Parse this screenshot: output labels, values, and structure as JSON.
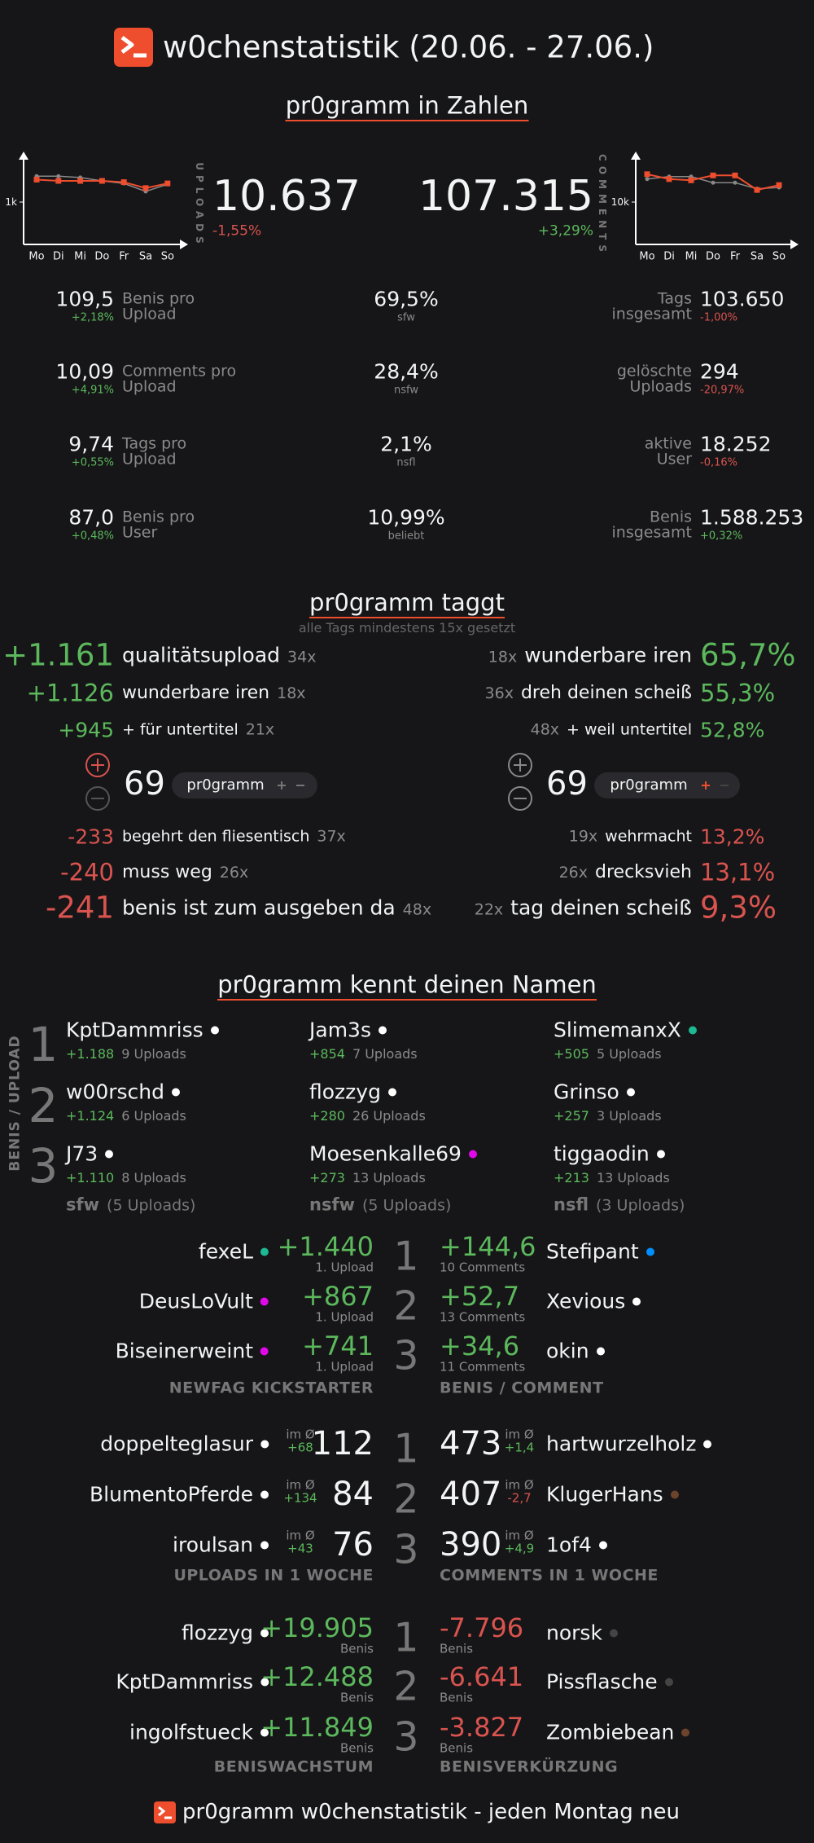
{
  "header": {
    "title": "w0chenstatistik (20.06. - 27.06.)"
  },
  "numbers": {
    "title": "pr0gramm in Zahlen",
    "uploads": {
      "label": "UPLOADS",
      "value": "10.637",
      "change": "-1,55%"
    },
    "comments": {
      "label": "COMMENTS",
      "value": "107.315",
      "change": "+3,29%"
    },
    "upload_chart": {
      "type": "line",
      "categories": [
        "Mo",
        "Di",
        "Mi",
        "Do",
        "Fr",
        "Sa",
        "So"
      ],
      "ylim": [
        0,
        2000
      ],
      "yticks": [
        {
          "value": 1000,
          "label": "1k"
        }
      ],
      "series": [
        {
          "color": "#888888",
          "values": [
            1610,
            1610,
            1580,
            1500,
            1440,
            1250,
            1420
          ]
        },
        {
          "color": "#ee4d2e",
          "values": [
            1530,
            1500,
            1500,
            1500,
            1470,
            1330,
            1440
          ]
        }
      ]
    },
    "comment_chart": {
      "type": "line",
      "categories": [
        "Mo",
        "Di",
        "Mi",
        "Do",
        "Fr",
        "Sa",
        "So"
      ],
      "ylim": [
        0,
        20000
      ],
      "yticks": [
        {
          "value": 10000,
          "label": "10k"
        }
      ],
      "series": [
        {
          "color": "#888888",
          "values": [
            15430,
            16000,
            16000,
            14570,
            14570,
            13140,
            13430
          ]
        },
        {
          "color": "#ee4d2e",
          "values": [
            16570,
            15430,
            15140,
            16290,
            16290,
            12860,
            14000
          ]
        }
      ]
    },
    "left": [
      {
        "value": "109,5",
        "change": "+2,18%",
        "label": [
          "Benis pro",
          "Upload"
        ]
      },
      {
        "value": "10,09",
        "change": "+4,91%",
        "label": [
          "Comments pro",
          "Upload"
        ]
      },
      {
        "value": "9,74",
        "change": "+0,55%",
        "label": [
          "Tags pro",
          "Upload"
        ]
      },
      {
        "value": "87,0",
        "change": "+0,48%",
        "label": [
          "Benis pro",
          "User"
        ]
      }
    ],
    "center": [
      {
        "value": "69,5%",
        "label": "sfw"
      },
      {
        "value": "28,4%",
        "label": "nsfw"
      },
      {
        "value": "2,1%",
        "label": "nsfl"
      },
      {
        "value": "10,99%",
        "label": "beliebt"
      }
    ],
    "right": [
      {
        "label": [
          "Tags",
          "insgesamt"
        ],
        "value": "103.650",
        "change": "-1,00%"
      },
      {
        "label": [
          "gelöschte",
          "Uploads"
        ],
        "value": "294",
        "change": "-20,97%"
      },
      {
        "label": [
          "aktive",
          "User"
        ],
        "value": "18.252",
        "change": "-0,16%"
      },
      {
        "label": [
          "Benis",
          "insgesamt"
        ],
        "value": "1.588.253",
        "change": "+0,32%"
      }
    ]
  },
  "tags": {
    "title": "pr0gramm taggt",
    "subtitle": "alle Tags mindestens 15x gesetzt",
    "top_left": [
      {
        "score": "+1.161",
        "tag": "qualitätsupload",
        "count": "34x"
      },
      {
        "score": "+1.126",
        "tag": "wunderbare iren",
        "count": "18x"
      },
      {
        "score": "+945",
        "tag": "+ für untertitel",
        "count": "21x"
      }
    ],
    "top_right": [
      {
        "count": "18x",
        "tag": "wunderbare iren",
        "share": "65,7%"
      },
      {
        "count": "36x",
        "tag": "dreh deinen scheiß",
        "share": "55,3%"
      },
      {
        "count": "48x",
        "tag": "+ weil untertitel",
        "share": "52,8%"
      }
    ],
    "vote_left": {
      "score": "69",
      "tag": "pr0gramm"
    },
    "vote_right": {
      "score": "69",
      "tag": "pr0gramm"
    },
    "bottom_left": [
      {
        "score": "-233",
        "tag": "begehrt den fliesentisch",
        "count": "37x"
      },
      {
        "score": "-240",
        "tag": "muss weg",
        "count": "26x"
      },
      {
        "score": "-241",
        "tag": "benis ist zum ausgeben da",
        "count": "48x"
      }
    ],
    "bottom_right": [
      {
        "count": "19x",
        "tag": "wehrmacht",
        "share": "13,2%"
      },
      {
        "count": "26x",
        "tag": "drecksvieh",
        "share": "13,1%"
      },
      {
        "count": "22x",
        "tag": "tag deinen scheiß",
        "share": "9,3%"
      }
    ]
  },
  "names": {
    "title": "pr0gramm kennt deinen Namen",
    "side_label": "BENIS / UPLOAD",
    "ranks": [
      "1",
      "2",
      "3"
    ],
    "columns": [
      {
        "users": [
          {
            "name": "KptDammriss",
            "color": "#ffffff",
            "benis": "+1.188",
            "uploads": "9 Uploads"
          },
          {
            "name": "w00rschd",
            "color": "#ffffff",
            "benis": "+1.124",
            "uploads": "6 Uploads"
          },
          {
            "name": "J73",
            "color": "#ffffff",
            "benis": "+1.110",
            "uploads": "8 Uploads"
          }
        ],
        "category": "sfw",
        "uploads": "(5 Uploads)"
      },
      {
        "users": [
          {
            "name": "Jam3s",
            "color": "#ffffff",
            "benis": "+854",
            "uploads": "7 Uploads"
          },
          {
            "name": "flozzyg",
            "color": "#ffffff",
            "benis": "+280",
            "uploads": "26 Uploads"
          },
          {
            "name": "Moesenkalle69",
            "color": "#e108e9",
            "benis": "+273",
            "uploads": "13 Uploads"
          }
        ],
        "category": "nsfw",
        "uploads": "(5 Uploads)"
      },
      {
        "users": [
          {
            "name": "SlimemanxX",
            "color": "#1db992",
            "benis": "+505",
            "uploads": "5 Uploads"
          },
          {
            "name": "Grinso",
            "color": "#ffffff",
            "benis": "+257",
            "uploads": "3 Uploads"
          },
          {
            "name": "tiggaodin",
            "color": "#ffffff",
            "benis": "+213",
            "uploads": "13 Uploads"
          }
        ],
        "category": "nsfl",
        "uploads": "(3 Uploads)"
      }
    ]
  },
  "rankings": [
    {
      "ranks": [
        "1",
        "2",
        "3"
      ],
      "left": {
        "title": "NEWFAG KICKSTARTER",
        "value_color": "#5cb85c",
        "rows": [
          {
            "name": "fexeL",
            "color": "#1db992",
            "value": "+1.440",
            "note": "1. Upload"
          },
          {
            "name": "DeusLoVult",
            "color": "#e108e9",
            "value": "+867",
            "note": "1. Upload"
          },
          {
            "name": "Biseinerweint",
            "color": "#e108e9",
            "value": "+741",
            "note": "1. Upload"
          }
        ]
      },
      "right": {
        "title": "BENIS / COMMENT",
        "value_color": "#5cb85c",
        "rows": [
          {
            "name": "Stefipant",
            "color": "#008fff",
            "value": "+144,6",
            "note": "10 Comments"
          },
          {
            "name": "Xevious",
            "color": "#ffffff",
            "value": "+52,7",
            "note": "13 Comments"
          },
          {
            "name": "okin",
            "color": "#ffffff",
            "value": "+34,6",
            "note": "11 Comments"
          }
        ]
      }
    },
    {
      "ranks": [
        "1",
        "2",
        "3"
      ],
      "left": {
        "title": "UPLOADS IN 1 WOCHE",
        "value_color": "#f2f5f4",
        "rows": [
          {
            "name": "doppelteglasur",
            "color": "#ffffff",
            "value": "112",
            "avg_label": "im Ø",
            "avg": "+68"
          },
          {
            "name": "BlumentoPferde",
            "color": "#ffffff",
            "value": "84",
            "avg_label": "im Ø",
            "avg": "+134"
          },
          {
            "name": "iroulsan",
            "color": "#ffffff",
            "value": "76",
            "avg_label": "im Ø",
            "avg": "+43"
          }
        ]
      },
      "right": {
        "title": "COMMENTS IN 1 WOCHE",
        "value_color": "#f2f5f4",
        "rows": [
          {
            "name": "hartwurzelholz",
            "color": "#ffffff",
            "value": "473",
            "avg_label": "im Ø",
            "avg": "+1,4"
          },
          {
            "name": "KlugerHans",
            "color": "#6c432b",
            "value": "407",
            "avg_label": "im Ø",
            "avg": "-2,7"
          },
          {
            "name": "1of4",
            "color": "#ffffff",
            "value": "390",
            "avg_label": "im Ø",
            "avg": "+4,9"
          }
        ]
      }
    },
    {
      "ranks": [
        "1",
        "2",
        "3"
      ],
      "left": {
        "title": "BENISWACHSTUM",
        "value_color": "#5cb85c",
        "rows": [
          {
            "name": "flozzyg",
            "color": "#ffffff",
            "value": "+19.905",
            "note": "Benis"
          },
          {
            "name": "KptDammriss",
            "color": "#ffffff",
            "value": "+12.488",
            "note": "Benis"
          },
          {
            "name": "ingolfstueck",
            "color": "#ffffff",
            "value": "+11.849",
            "note": "Benis"
          }
        ]
      },
      "right": {
        "title": "BENISVERKÜRZUNG",
        "value_color": "#d9534f",
        "rows": [
          {
            "name": "norsk",
            "color": "#444444",
            "value": "-7.796",
            "note": "Benis"
          },
          {
            "name": "Pissflasche",
            "color": "#444444",
            "value": "-6.641",
            "note": "Benis"
          },
          {
            "name": "Zombiebean",
            "color": "#6c432b",
            "value": "-3.827",
            "note": "Benis"
          }
        ]
      }
    }
  ],
  "footer": {
    "text": "pr0gramm w0chenstatistik - jeden Montag neu"
  }
}
